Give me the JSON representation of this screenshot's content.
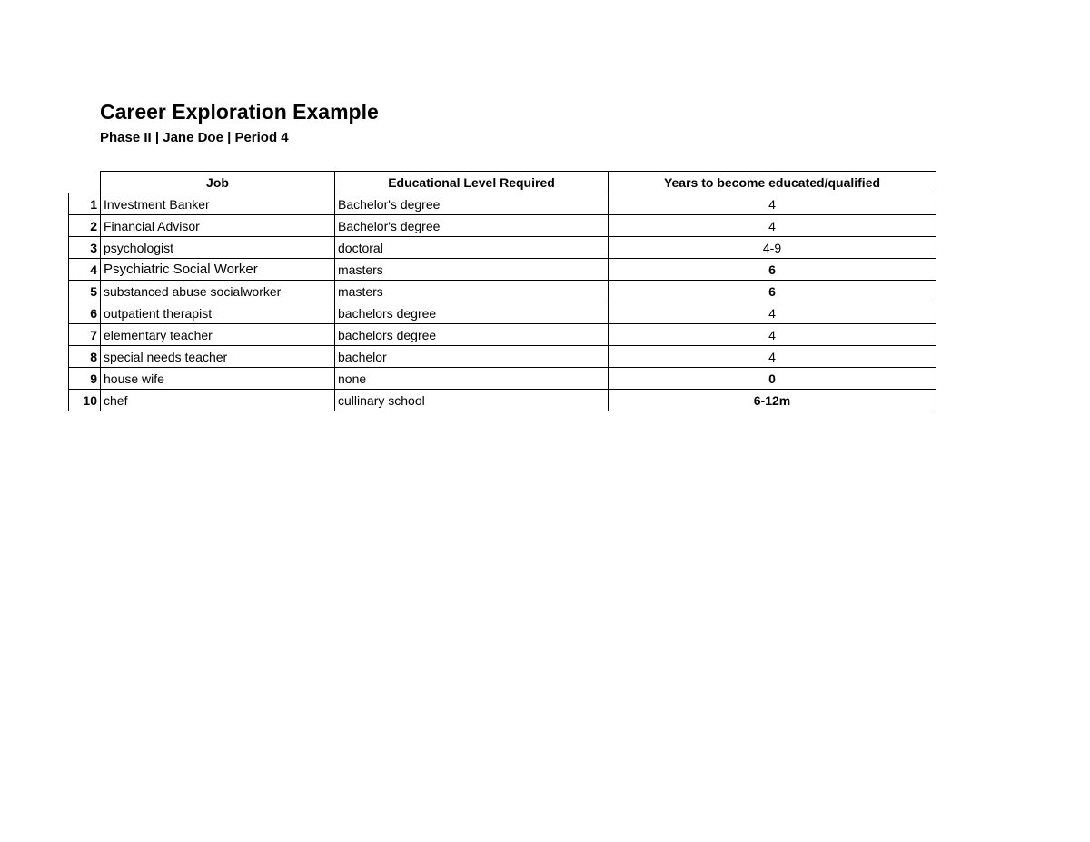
{
  "title": "Career Exploration Example",
  "subtitle": "Phase II | Jane Doe | Period 4",
  "table": {
    "headers": [
      "Job",
      "Educational Level Required",
      "Years to become educated/qualified"
    ],
    "rows": [
      {
        "num": "1",
        "job": "Investment Banker",
        "edu": "Bachelor's degree",
        "years": "4"
      },
      {
        "num": "2",
        "job": "Financial Advisor",
        "edu": "Bachelor's degree",
        "years": "4"
      },
      {
        "num": "3",
        "job": "psychologist",
        "edu": "doctoral",
        "years": "4-9"
      },
      {
        "num": "4",
        "job": "Psychiatric Social Worker",
        "edu": "masters",
        "years": "6"
      },
      {
        "num": "5",
        "job": "substanced abuse socialworker",
        "edu": "masters",
        "years": "6"
      },
      {
        "num": "6",
        "job": "outpatient therapist",
        "edu": "bachelors degree",
        "years": "4"
      },
      {
        "num": "7",
        "job": "elementary teacher",
        "edu": "bachelors degree",
        "years": "4"
      },
      {
        "num": "8",
        "job": "special needs teacher",
        "edu": "bachelor",
        "years": "4"
      },
      {
        "num": "9",
        "job": "house wife",
        "edu": "none",
        "years": "0"
      },
      {
        "num": "10",
        "job": "chef",
        "edu": "cullinary school",
        "years": "6-12m"
      }
    ]
  }
}
